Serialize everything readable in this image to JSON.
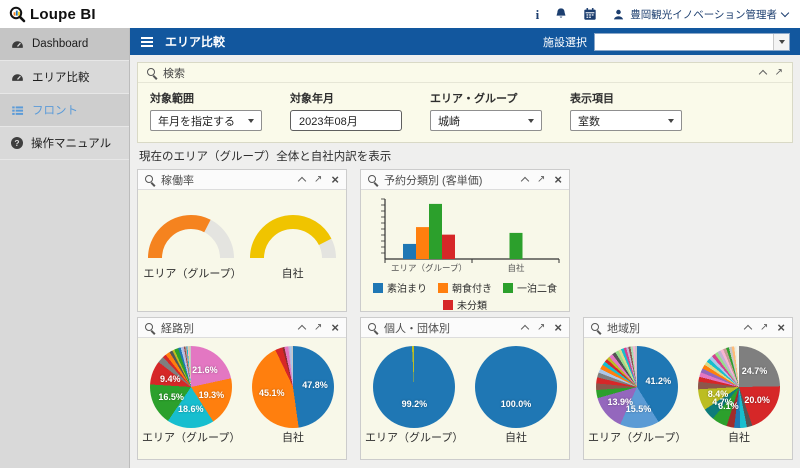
{
  "app": {
    "logo": "Loupe BI"
  },
  "header": {
    "user": "豊岡観光イノベーション管理者"
  },
  "sidebar": {
    "items": [
      {
        "label": "Dashboard",
        "icon": "gauge-icon"
      },
      {
        "label": "エリア比較",
        "icon": "gauge-icon"
      },
      {
        "label": "フロント",
        "icon": "list-icon"
      },
      {
        "label": "操作マニュアル",
        "icon": "question-icon"
      }
    ]
  },
  "topbar": {
    "title": "エリア比較",
    "facility_label": "施設選択",
    "facility_value": ""
  },
  "search": {
    "title": "検索",
    "fields": [
      {
        "label": "対象範囲",
        "value": "年月を指定する"
      },
      {
        "label": "対象年月",
        "value": "2023年08月"
      },
      {
        "label": "エリア・グループ",
        "value": "城崎"
      },
      {
        "label": "表示項目",
        "value": "室数"
      }
    ]
  },
  "note": "現在のエリア（グループ）全体と自社内訳を表示",
  "chart_data": [
    {
      "type": "gauge",
      "title": "稼働率",
      "max": 100,
      "track_color": "#e4e4e0",
      "series": [
        {
          "name": "エリア（グループ）",
          "value": 65,
          "color": "#f5831f"
        },
        {
          "name": "自社",
          "value": 85,
          "color": "#f0c400"
        }
      ],
      "note": "half-donut gauges; fill estimated, no numeric labels displayed"
    },
    {
      "type": "bar",
      "title": "予約分類別 (客単価)",
      "categories": [
        "エリア（グループ）",
        "自社"
      ],
      "series": [
        {
          "name": "素泊まり",
          "color": "#1f77b4",
          "values": [
            26,
            0
          ]
        },
        {
          "name": "朝食付き",
          "color": "#ff7f0e",
          "values": [
            55,
            0
          ]
        },
        {
          "name": "一泊二食",
          "color": "#2ca02c",
          "values": [
            95,
            45
          ]
        },
        {
          "name": "未分類",
          "color": "#d62728",
          "values": [
            42,
            0
          ]
        }
      ],
      "ylim": [
        0,
        100
      ],
      "note": "y-axis ticks unlabeled; values are relative heights (max=100)"
    },
    {
      "type": "pie",
      "title": "経路別",
      "pies": [
        {
          "name": "エリア（グループ）",
          "slices": [
            {
              "value": 21.6,
              "color": "#e377c2",
              "label": "21.6%"
            },
            {
              "value": 19.3,
              "color": "#ff7f0e",
              "label": "19.3%"
            },
            {
              "value": 18.6,
              "color": "#17becf",
              "label": "18.6%"
            },
            {
              "value": 16.5,
              "color": "#2ca02c",
              "label": "16.5%"
            },
            {
              "value": 9.4,
              "color": "#d62728",
              "label": "9.4%"
            },
            {
              "value": 2.6,
              "color": "#7f7f7f"
            },
            {
              "value": 1.4,
              "color": "#d62728"
            },
            {
              "value": 1.8,
              "color": "#ff7f0e"
            },
            {
              "value": 1.2,
              "color": "#555555"
            },
            {
              "value": 0.9,
              "color": "#bcbd22"
            },
            {
              "value": 1.6,
              "color": "#2ca02c"
            },
            {
              "value": 1.0,
              "color": "#1f77b4"
            },
            {
              "value": 0.7,
              "color": "#aec7e8"
            },
            {
              "value": 0.6,
              "color": "#c5b0d5"
            },
            {
              "value": 0.5,
              "color": "#8c564b"
            },
            {
              "value": 0.5,
              "color": "#c49c94"
            },
            {
              "value": 0.4,
              "color": "#17becf"
            },
            {
              "value": 0.4,
              "color": "#f7b6d2"
            },
            {
              "value": 0.4,
              "color": "#dbdb8d"
            },
            {
              "value": 0.6,
              "color": "#c7c7c7"
            }
          ]
        },
        {
          "name": "自社",
          "slices": [
            {
              "value": 47.8,
              "color": "#1f77b4",
              "label": "47.8%"
            },
            {
              "value": 45.1,
              "color": "#ff7f0e",
              "label": "45.1%"
            },
            {
              "value": 2.9,
              "color": "#d62728"
            },
            {
              "value": 0.8,
              "color": "#8b2e2e"
            },
            {
              "value": 1.5,
              "color": "#e377c2"
            },
            {
              "value": 0.6,
              "color": "#c5b0d5"
            },
            {
              "value": 0.6,
              "color": "#aec7e8"
            },
            {
              "value": 0.7,
              "color": "#c7c7c7"
            }
          ]
        }
      ]
    },
    {
      "type": "pie",
      "title": "個人・団体別",
      "pies": [
        {
          "name": "エリア（グループ）",
          "slices": [
            {
              "value": 99.2,
              "color": "#1f77b4",
              "label": "99.2%"
            },
            {
              "value": 0.8,
              "color": "#bcbd22"
            }
          ]
        },
        {
          "name": "自社",
          "slices": [
            {
              "value": 100.0,
              "color": "#1f77b4",
              "label": "100.0%"
            }
          ]
        }
      ]
    },
    {
      "type": "pie",
      "title": "地域別",
      "pies": [
        {
          "name": "エリア（グループ）",
          "slices": [
            {
              "value": 41.2,
              "color": "#1f77b4",
              "label": "41.2%"
            },
            {
              "value": 15.5,
              "color": "#5b9bd5",
              "label": "15.5%"
            },
            {
              "value": 13.9,
              "color": "#9467bd",
              "label": "13.9%"
            },
            {
              "value": 3.2,
              "color": "#2ca02c"
            },
            {
              "value": 2.6,
              "color": "#8c564b"
            },
            {
              "value": 2.4,
              "color": "#d62728"
            },
            {
              "value": 1.9,
              "color": "#7f7f7f"
            },
            {
              "value": 1.6,
              "color": "#aec7e8"
            },
            {
              "value": 1.8,
              "color": "#ff7f0e"
            },
            {
              "value": 1.5,
              "color": "#17becf"
            },
            {
              "value": 1.3,
              "color": "#d62728"
            },
            {
              "value": 1.2,
              "color": "#bcbd22"
            },
            {
              "value": 1.6,
              "color": "#e377c2"
            },
            {
              "value": 1.4,
              "color": "#555555"
            },
            {
              "value": 1.3,
              "color": "#98df8a"
            },
            {
              "value": 1.2,
              "color": "#dbdb8d"
            },
            {
              "value": 1.1,
              "color": "#17becf"
            },
            {
              "value": 1.0,
              "color": "#d4418e"
            },
            {
              "value": 0.9,
              "color": "#c5b0d5"
            },
            {
              "value": 0.8,
              "color": "#8c564b"
            },
            {
              "value": 0.9,
              "color": "#a8ddb5"
            },
            {
              "value": 0.9,
              "color": "#f7b6d2"
            },
            {
              "value": 0.8,
              "color": "#c7c7c7"
            }
          ]
        },
        {
          "name": "自社",
          "slices": [
            {
              "value": 24.7,
              "color": "#7f7f7f",
              "label": "24.7%"
            },
            {
              "value": 20.0,
              "color": "#d62728",
              "label": "20.0%"
            },
            {
              "value": 2.2,
              "color": "#555555"
            },
            {
              "value": 2.6,
              "color": "#17becf"
            },
            {
              "value": 2.4,
              "color": "#1f77b4"
            },
            {
              "value": 3.0,
              "color": "#a02c2c"
            },
            {
              "value": 6.1,
              "color": "#2ca02c",
              "label": "6.1%"
            },
            {
              "value": 4.7,
              "color": "#0e7c7b",
              "label": "4.7%"
            },
            {
              "value": 8.4,
              "color": "#bcbd22",
              "label": "8.4%"
            },
            {
              "value": 3.0,
              "color": "#8c564b"
            },
            {
              "value": 1.9,
              "color": "#d62728"
            },
            {
              "value": 1.8,
              "color": "#e377c2"
            },
            {
              "value": 1.7,
              "color": "#9467bd"
            },
            {
              "value": 1.6,
              "color": "#ff7f0e"
            },
            {
              "value": 1.5,
              "color": "#dbdb8d"
            },
            {
              "value": 1.5,
              "color": "#17becf"
            },
            {
              "value": 1.4,
              "color": "#aec7e8"
            },
            {
              "value": 1.4,
              "color": "#d4418e"
            },
            {
              "value": 1.3,
              "color": "#98df8a"
            },
            {
              "value": 1.3,
              "color": "#c5b0d5"
            },
            {
              "value": 1.2,
              "color": "#f7b6d2"
            },
            {
              "value": 1.2,
              "color": "#c49c94"
            },
            {
              "value": 1.1,
              "color": "#2ca02c"
            },
            {
              "value": 1.1,
              "color": "#c7c7c7"
            },
            {
              "value": 1.0,
              "color": "#ffbb78"
            },
            {
              "value": 0.9,
              "color": "#eeeedd"
            },
            {
              "value": 1.0,
              "color": "#f5f5f0"
            }
          ]
        }
      ]
    }
  ]
}
